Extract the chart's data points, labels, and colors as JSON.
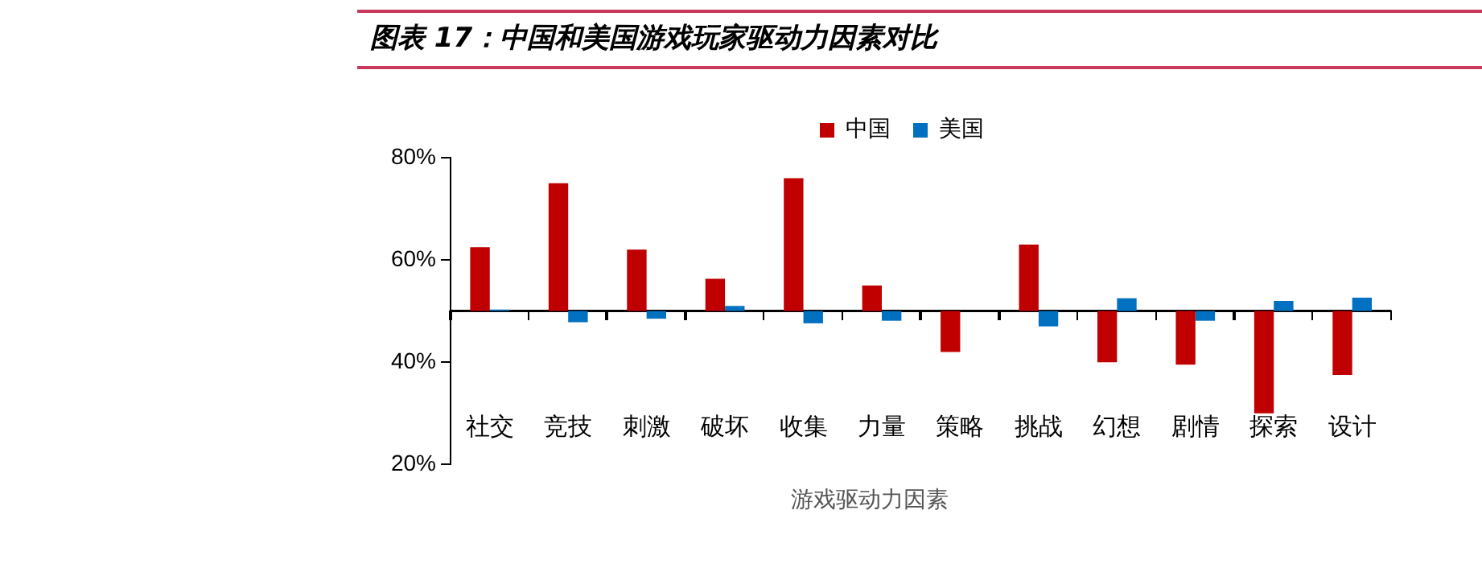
{
  "chart_data": {
    "type": "bar",
    "title": "图表 17：中国和美国游戏玩家驱动力因素对比",
    "xlabel": "游戏驱动力因素",
    "categories": [
      "社交",
      "竞技",
      "刺激",
      "破坏",
      "收集",
      "力量",
      "策略",
      "挑战",
      "幻想",
      "剧情",
      "探索",
      "设计"
    ],
    "series": [
      {
        "name": "中国",
        "color": "#c00000",
        "base": [
          50,
          50,
          50,
          50,
          50,
          50,
          50,
          50,
          50,
          50,
          50,
          50
        ],
        "values": [
          12.5,
          25,
          12,
          6.3,
          26,
          5,
          -8,
          13,
          -10,
          -10.5,
          -20,
          -12.5
        ]
      },
      {
        "name": "美国",
        "color": "#0070c0",
        "base": [
          50,
          50,
          50,
          50,
          50,
          50,
          null,
          50,
          50,
          50,
          50,
          50
        ],
        "values": [
          0.3,
          -2.2,
          -1.5,
          1,
          -2.4,
          -1.9,
          null,
          -3,
          2.5,
          -1.9,
          2,
          2.6
        ]
      }
    ],
    "ylim": [
      20,
      80
    ],
    "yticks": [
      {
        "value": 20,
        "label": "20%"
      },
      {
        "value": 40,
        "label": "40%"
      },
      {
        "value": 60,
        "label": "60%"
      },
      {
        "value": 80,
        "label": "80%"
      }
    ],
    "ref_lines": [
      {
        "axis": "y",
        "value": 50,
        "color": "#000000"
      }
    ],
    "grid": false,
    "legend": "top"
  }
}
